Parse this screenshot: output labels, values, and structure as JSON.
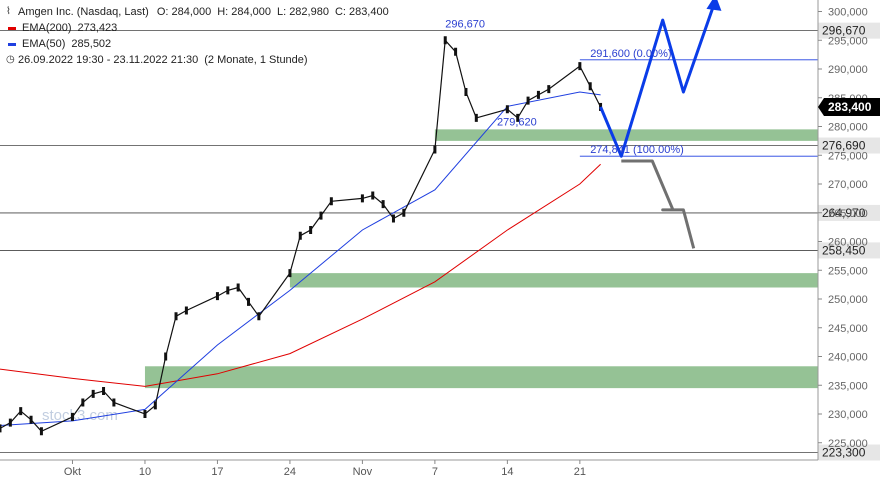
{
  "header": {
    "title": "Amgen Inc. (Nasdaq, Last)",
    "ohlc": [
      {
        "label": "O:",
        "value": "284,000"
      },
      {
        "label": "H:",
        "value": "284,000"
      },
      {
        "label": "L:",
        "value": "282,980"
      },
      {
        "label": "C:",
        "value": "283,400"
      }
    ],
    "range_text": "26.09.2022 19:30 - 23.11.2022 21:30",
    "range_note": "(2 Monate, 1 Stunde)"
  },
  "legend": [
    {
      "name": "EMA(200)",
      "value": "273,423",
      "color": "#e00000"
    },
    {
      "name": "EMA(50)",
      "value": "285,502",
      "color": "#1f3fe0"
    }
  ],
  "colors": {
    "ema200": "#e00000",
    "ema50": "#1f3fe0",
    "zone": "#8fbf8f",
    "target": "#0a3ce8",
    "alt_path": "#707070",
    "price_badge": "#000000"
  },
  "watermark": "stock3.com",
  "chart_data": {
    "type": "line",
    "title": "Amgen Inc. (Nasdaq, Last)",
    "ylim": [
      222000,
      302000
    ],
    "y_ticks": [
      {
        "value": 225000,
        "label": "225,000"
      },
      {
        "value": 230000,
        "label": "230,000"
      },
      {
        "value": 235000,
        "label": "235,000"
      },
      {
        "value": 240000,
        "label": "240,000"
      },
      {
        "value": 245000,
        "label": "245,000"
      },
      {
        "value": 250000,
        "label": "250,000"
      },
      {
        "value": 255000,
        "label": "255,000"
      },
      {
        "value": 260000,
        "label": "260,000"
      },
      {
        "value": 265000,
        "label": "265,000"
      },
      {
        "value": 270000,
        "label": "270,000"
      },
      {
        "value": 275000,
        "label": "275,000"
      },
      {
        "value": 280000,
        "label": "280,000"
      },
      {
        "value": 285000,
        "label": "285,000"
      },
      {
        "value": 290000,
        "label": "290,000"
      },
      {
        "value": 295000,
        "label": "295,000"
      },
      {
        "value": 300000,
        "label": "300,000"
      }
    ],
    "x_ticks": [
      {
        "date": "2022-10-03",
        "label": "Okt"
      },
      {
        "date": "2022-10-10",
        "label": "10"
      },
      {
        "date": "2022-10-17",
        "label": "17"
      },
      {
        "date": "2022-10-24",
        "label": "24"
      },
      {
        "date": "2022-10-31",
        "label": "Nov"
      },
      {
        "date": "2022-11-07",
        "label": "7"
      },
      {
        "date": "2022-11-14",
        "label": "14"
      },
      {
        "date": "2022-11-21",
        "label": "21"
      }
    ],
    "x_range": [
      "2022-09-26",
      "2022-12-14"
    ],
    "price_series": {
      "name": "Amgen Inc.",
      "points": [
        [
          "2022-09-26",
          227500
        ],
        [
          "2022-09-27",
          228500
        ],
        [
          "2022-09-28",
          230500
        ],
        [
          "2022-09-29",
          229000
        ],
        [
          "2022-09-30",
          227000
        ],
        [
          "2022-10-03",
          229500
        ],
        [
          "2022-10-04",
          232000
        ],
        [
          "2022-10-05",
          233500
        ],
        [
          "2022-10-06",
          234000
        ],
        [
          "2022-10-07",
          232000
        ],
        [
          "2022-10-10",
          230000
        ],
        [
          "2022-10-11",
          231500
        ],
        [
          "2022-10-12",
          240000
        ],
        [
          "2022-10-13",
          247000
        ],
        [
          "2022-10-14",
          248000
        ],
        [
          "2022-10-17",
          250500
        ],
        [
          "2022-10-18",
          251500
        ],
        [
          "2022-10-19",
          252000
        ],
        [
          "2022-10-20",
          249500
        ],
        [
          "2022-10-21",
          247000
        ],
        [
          "2022-10-24",
          254500
        ],
        [
          "2022-10-25",
          261000
        ],
        [
          "2022-10-26",
          262000
        ],
        [
          "2022-10-27",
          264500
        ],
        [
          "2022-10-28",
          267000
        ],
        [
          "2022-10-31",
          267500
        ],
        [
          "2022-11-01",
          268000
        ],
        [
          "2022-11-02",
          266500
        ],
        [
          "2022-11-03",
          264000
        ],
        [
          "2022-11-04",
          265000
        ],
        [
          "2022-11-07",
          276000
        ],
        [
          "2022-11-08",
          295000
        ],
        [
          "2022-11-09",
          293000
        ],
        [
          "2022-11-10",
          286000
        ],
        [
          "2022-11-11",
          281500
        ],
        [
          "2022-11-14",
          283000
        ],
        [
          "2022-11-15",
          281500
        ],
        [
          "2022-11-16",
          284500
        ],
        [
          "2022-11-17",
          285500
        ],
        [
          "2022-11-18",
          286500
        ],
        [
          "2022-11-21",
          290500
        ],
        [
          "2022-11-22",
          287000
        ],
        [
          "2022-11-23",
          283400
        ]
      ]
    },
    "ema200_series": {
      "name": "EMA(200)",
      "points": [
        [
          "2022-09-26",
          237800
        ],
        [
          "2022-10-03",
          236200
        ],
        [
          "2022-10-10",
          234800
        ],
        [
          "2022-10-17",
          237000
        ],
        [
          "2022-10-24",
          240500
        ],
        [
          "2022-10-31",
          246500
        ],
        [
          "2022-11-07",
          253000
        ],
        [
          "2022-11-14",
          262000
        ],
        [
          "2022-11-21",
          270000
        ],
        [
          "2022-11-23",
          273423
        ]
      ]
    },
    "ema50_series": {
      "name": "EMA(50)",
      "points": [
        [
          "2022-09-26",
          228000
        ],
        [
          "2022-10-03",
          228800
        ],
        [
          "2022-10-10",
          230800
        ],
        [
          "2022-10-17",
          242000
        ],
        [
          "2022-10-24",
          251500
        ],
        [
          "2022-10-31",
          262000
        ],
        [
          "2022-11-07",
          269000
        ],
        [
          "2022-11-14",
          283500
        ],
        [
          "2022-11-21",
          286000
        ],
        [
          "2022-11-23",
          285502
        ]
      ]
    },
    "horizontal_lines": [
      {
        "value": 296670,
        "label": "296,670"
      },
      {
        "value": 276690,
        "label": "276,690"
      },
      {
        "value": 264970,
        "label": "264,970"
      },
      {
        "value": 258450,
        "label": "258,450"
      },
      {
        "value": 223300,
        "label": "223,300"
      }
    ],
    "current_price": {
      "value": 283400,
      "label": "283,400"
    },
    "zones": [
      {
        "low": 277500,
        "high": 279500,
        "start": "2022-11-07"
      },
      {
        "low": 252000,
        "high": 254500,
        "start": "2022-10-24"
      },
      {
        "low": 234500,
        "high": 238300,
        "start": "2022-10-10"
      }
    ],
    "annotations": [
      {
        "date": "2022-11-08",
        "value": 296670,
        "label": "296,670"
      },
      {
        "date": "2022-11-22",
        "value": 291600,
        "label": "291,600 (0.00%)"
      },
      {
        "date": "2022-11-13",
        "value": 279620,
        "label": "279,620"
      },
      {
        "date": "2022-11-22",
        "value": 274841,
        "label": "274,841 (100.00%)"
      }
    ],
    "fib_lines": [
      {
        "value": 291600,
        "from": "2022-11-21"
      },
      {
        "value": 274841,
        "from": "2022-11-21"
      }
    ],
    "projection_main": {
      "points": [
        [
          "2022-11-23",
          283400
        ],
        [
          "2022-11-25",
          274841
        ],
        [
          "2022-11-29",
          298500
        ],
        [
          "2022-12-01",
          286000
        ],
        [
          "2022-12-04",
          301500
        ]
      ]
    },
    "projection_alt": {
      "points": [
        [
          "2022-11-25",
          274000
        ],
        [
          "2022-11-28",
          274000
        ],
        [
          "2022-11-30",
          265500
        ],
        [
          "2022-11-29",
          265500
        ],
        [
          "2022-12-01",
          265500
        ],
        [
          "2022-12-02",
          258800
        ]
      ]
    }
  }
}
